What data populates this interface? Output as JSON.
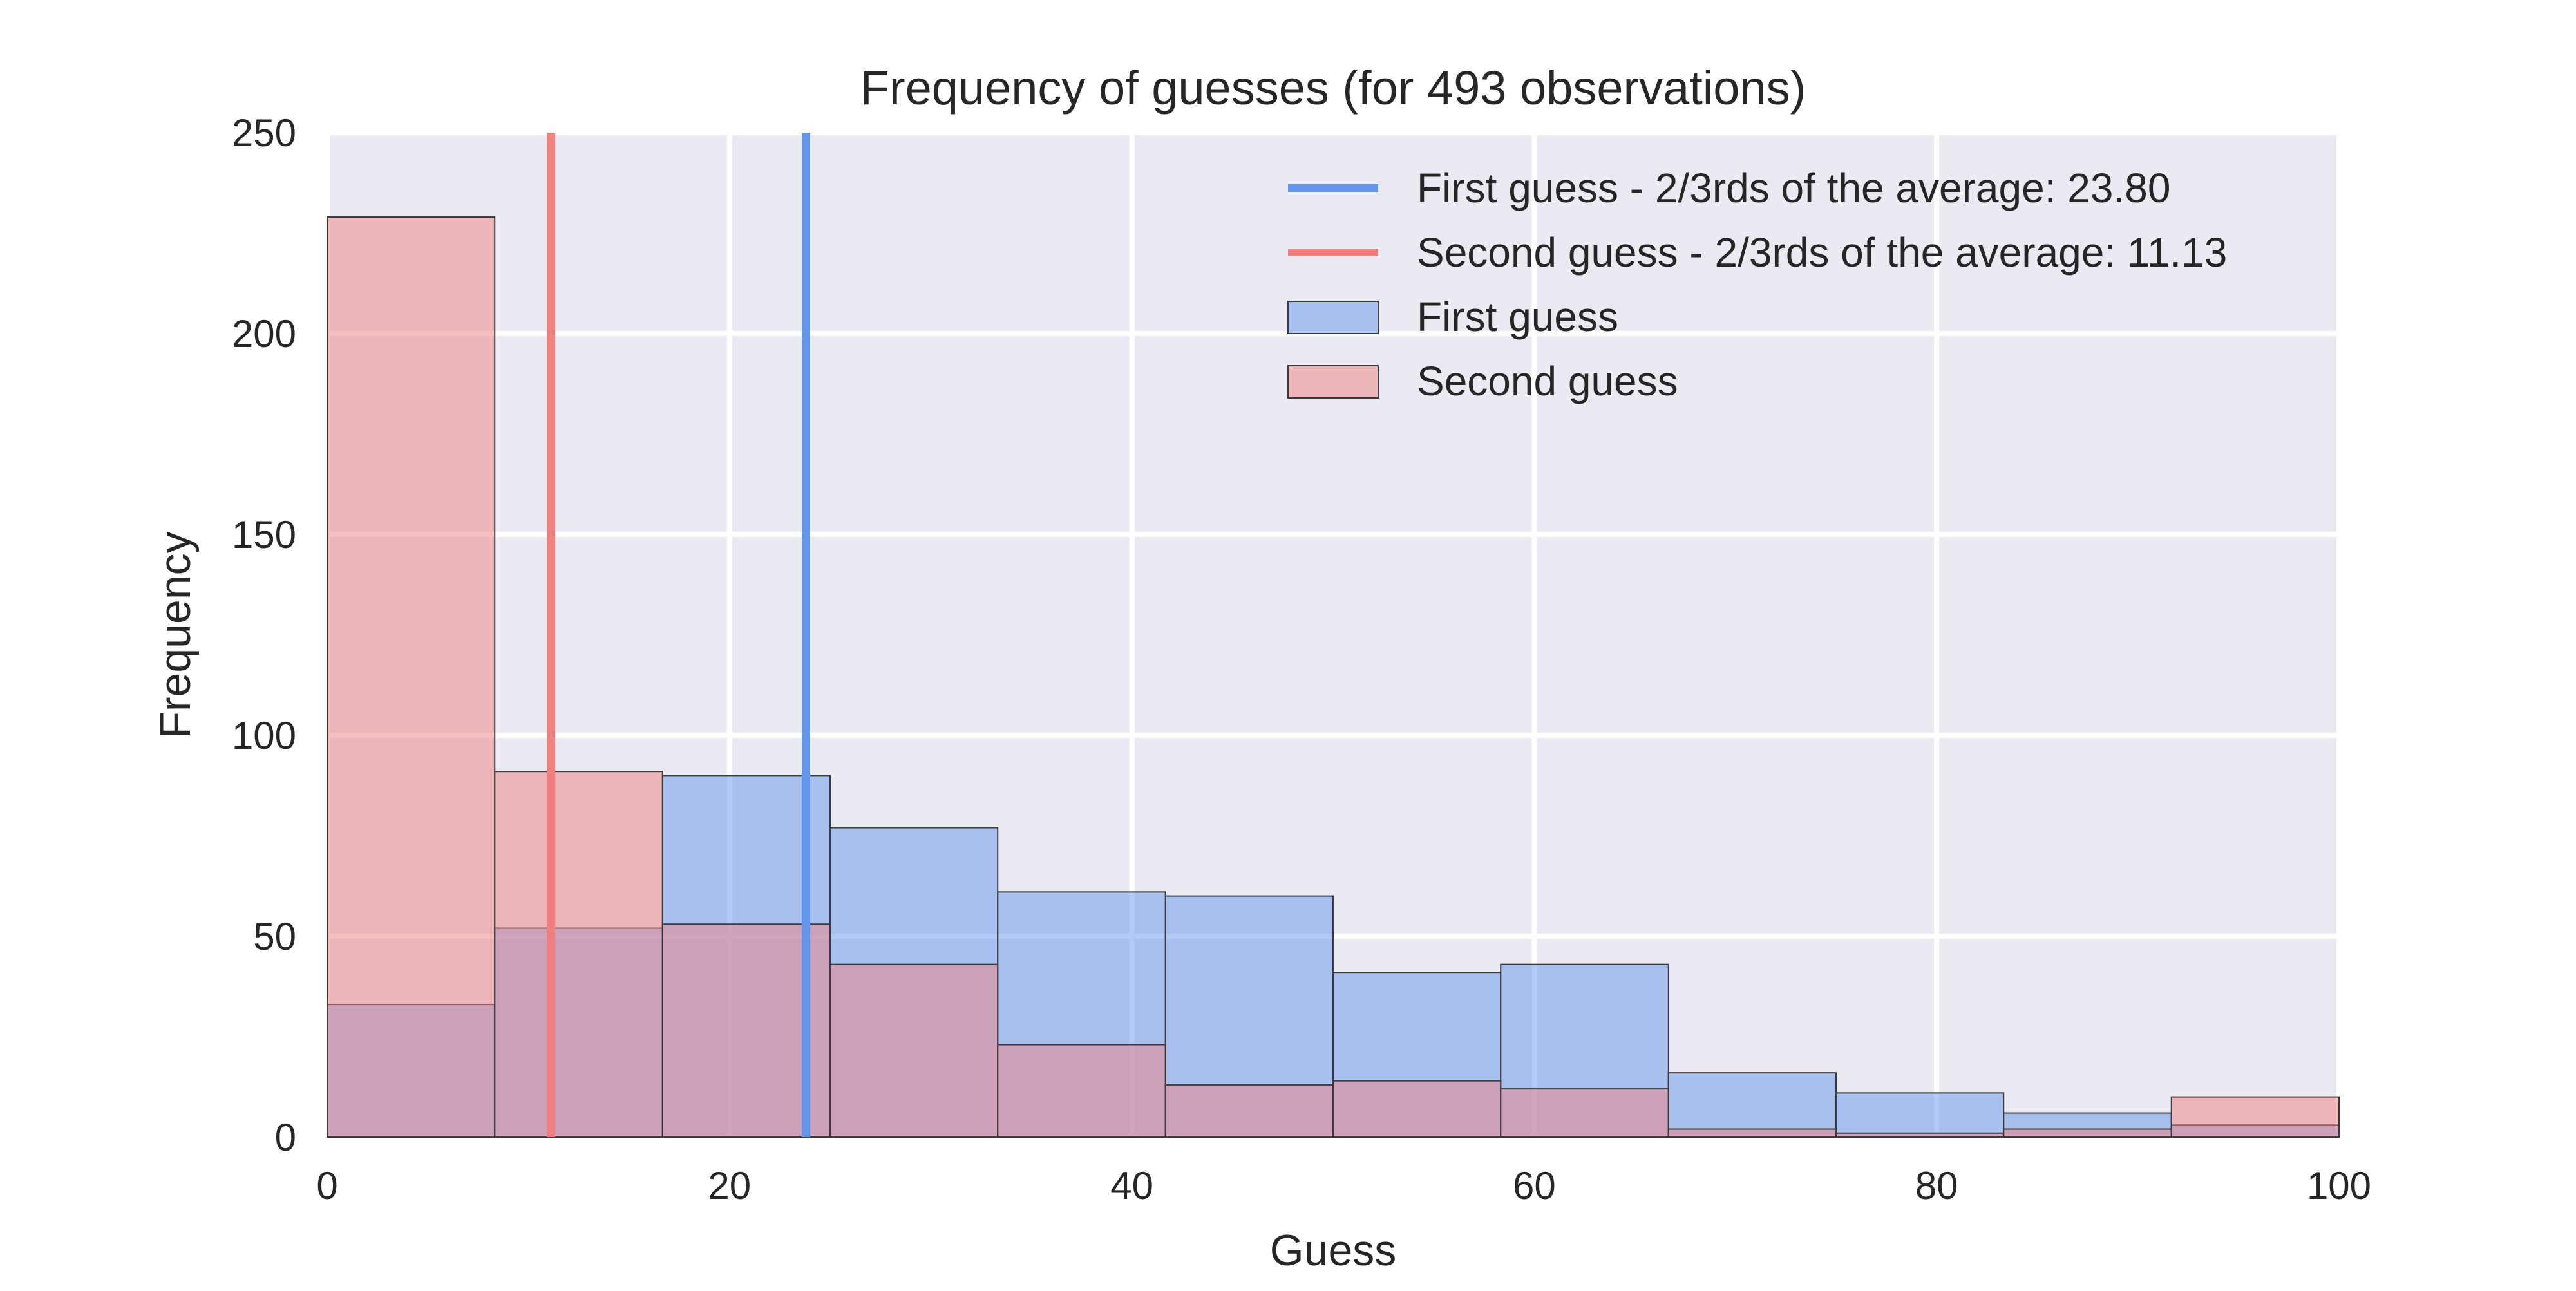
{
  "chart_data": {
    "type": "histogram",
    "title": "Frequency of guesses (for 493 observations)",
    "xlabel": "Guess",
    "ylabel": "Frequency",
    "xlim": [
      0,
      100
    ],
    "ylim": [
      0,
      250
    ],
    "x_ticks": [
      "0",
      "20",
      "40",
      "60",
      "80",
      "100"
    ],
    "y_ticks": [
      "0",
      "50",
      "100",
      "150",
      "200",
      "250"
    ],
    "bin_edges": [
      0,
      8.33,
      16.67,
      25,
      33.33,
      41.67,
      50,
      58.33,
      66.67,
      75,
      83.33,
      91.67,
      100
    ],
    "grid": true,
    "legend_position": "top-right",
    "series": [
      {
        "name": "First guess",
        "kind": "histogram",
        "color": "#6495ED",
        "values": [
          33,
          52,
          90,
          77,
          61,
          60,
          41,
          43,
          16,
          11,
          6,
          3
        ]
      },
      {
        "name": "Second guess",
        "kind": "histogram",
        "color": "#F08080",
        "values": [
          229,
          91,
          53,
          43,
          23,
          13,
          14,
          12,
          2,
          1,
          2,
          10
        ]
      }
    ],
    "reference_lines": [
      {
        "name": "First guess - 2/3rds of the average: 23.80",
        "x": 23.8,
        "color": "#6495ED"
      },
      {
        "name": "Second guess - 2/3rds of the average: 11.13",
        "x": 11.13,
        "color": "#F08080"
      }
    ],
    "legend": [
      {
        "label": "First guess - 2/3rds of the average: 23.80",
        "kind": "line",
        "color": "#6495ED"
      },
      {
        "label": "Second guess - 2/3rds of the average: 11.13",
        "kind": "line",
        "color": "#F08080"
      },
      {
        "label": "First guess",
        "kind": "patch",
        "color": "#6495ED"
      },
      {
        "label": "Second guess",
        "kind": "patch",
        "color": "#F08080"
      }
    ]
  }
}
